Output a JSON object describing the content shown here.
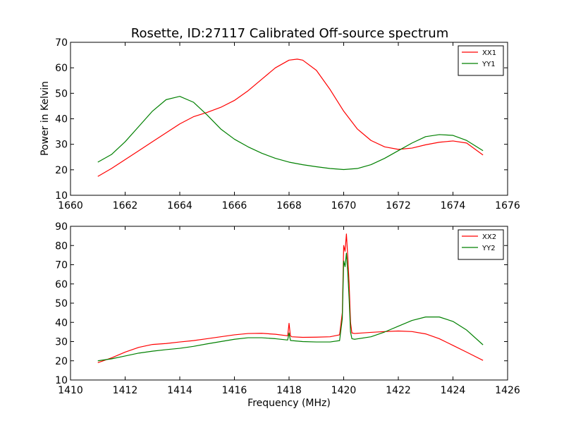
{
  "figure_title": "Rosette, ID:27117 Calibrated Off-source spectrum",
  "colors": {
    "xx": "#ff0000",
    "yy": "#008000",
    "axes": "#000000",
    "background": "#ffffff"
  },
  "chart_data": [
    {
      "type": "line",
      "title": "Rosette, ID:27117 Calibrated Off-source spectrum",
      "xlabel": "",
      "ylabel": "Power in Kelvin",
      "xlim": [
        1660,
        1676
      ],
      "ylim": [
        10,
        70
      ],
      "xticks": [
        1660,
        1662,
        1664,
        1666,
        1668,
        1670,
        1672,
        1674,
        1676
      ],
      "yticks": [
        10,
        20,
        30,
        40,
        50,
        60,
        70
      ],
      "grid": false,
      "legend_position": "top-right",
      "series": [
        {
          "name": "XX1",
          "color": "#ff0000",
          "x": [
            1661.0,
            1661.5,
            1662.0,
            1662.5,
            1663.0,
            1663.5,
            1664.0,
            1664.5,
            1665.0,
            1665.5,
            1666.0,
            1666.5,
            1667.0,
            1667.5,
            1668.0,
            1668.3,
            1668.5,
            1669.0,
            1669.5,
            1670.0,
            1670.5,
            1671.0,
            1671.5,
            1672.0,
            1672.5,
            1673.0,
            1673.5,
            1674.0,
            1674.5,
            1675.1
          ],
          "y": [
            17.4,
            20.5,
            24.0,
            27.5,
            31.0,
            34.5,
            38.0,
            40.8,
            42.5,
            44.5,
            47.2,
            51.0,
            55.5,
            60.0,
            63.0,
            63.4,
            63.0,
            59.0,
            51.5,
            43.0,
            36.0,
            31.5,
            29.0,
            28.0,
            28.5,
            29.8,
            30.8,
            31.3,
            30.5,
            25.8
          ]
        },
        {
          "name": "YY1",
          "color": "#008000",
          "x": [
            1661.0,
            1661.5,
            1662.0,
            1662.5,
            1663.0,
            1663.5,
            1664.0,
            1664.5,
            1665.0,
            1665.5,
            1666.0,
            1666.5,
            1667.0,
            1667.5,
            1668.0,
            1668.5,
            1669.0,
            1669.5,
            1670.0,
            1670.5,
            1671.0,
            1671.5,
            1672.0,
            1672.5,
            1673.0,
            1673.5,
            1674.0,
            1674.5,
            1675.1
          ],
          "y": [
            23.0,
            26.0,
            31.0,
            37.0,
            43.0,
            47.5,
            48.8,
            46.5,
            41.5,
            36.0,
            32.0,
            29.0,
            26.5,
            24.5,
            23.0,
            22.0,
            21.2,
            20.5,
            20.1,
            20.5,
            22.0,
            24.5,
            27.5,
            30.5,
            33.0,
            33.8,
            33.5,
            31.5,
            27.5
          ]
        }
      ]
    },
    {
      "type": "line",
      "title": "",
      "xlabel": "Frequency (MHz)",
      "ylabel": "",
      "xlim": [
        1410,
        1426
      ],
      "ylim": [
        10,
        90
      ],
      "xticks": [
        1410,
        1412,
        1414,
        1416,
        1418,
        1420,
        1422,
        1424,
        1426
      ],
      "yticks": [
        10,
        20,
        30,
        40,
        50,
        60,
        70,
        80,
        90
      ],
      "grid": false,
      "legend_position": "top-right",
      "series": [
        {
          "name": "XX2",
          "color": "#ff0000",
          "x": [
            1411.0,
            1411.5,
            1412.0,
            1412.5,
            1413.0,
            1413.5,
            1414.0,
            1414.5,
            1415.0,
            1415.5,
            1416.0,
            1416.5,
            1417.0,
            1417.5,
            1417.95,
            1418.0,
            1418.05,
            1418.1,
            1418.5,
            1419.0,
            1419.5,
            1419.85,
            1419.95,
            1420.0,
            1420.05,
            1420.1,
            1420.15,
            1420.2,
            1420.25,
            1420.3,
            1420.4,
            1421.0,
            1421.5,
            1422.0,
            1422.5,
            1423.0,
            1423.5,
            1424.0,
            1424.5,
            1425.1
          ],
          "y": [
            19.0,
            21.5,
            24.5,
            27.0,
            28.5,
            29.0,
            29.8,
            30.5,
            31.5,
            32.5,
            33.5,
            34.2,
            34.3,
            33.8,
            33.0,
            39.5,
            33.0,
            32.5,
            32.2,
            32.3,
            32.5,
            33.5,
            45.0,
            80.0,
            77.0,
            86.0,
            74.0,
            60.0,
            40.0,
            34.5,
            34.2,
            34.8,
            35.2,
            35.5,
            35.2,
            34.0,
            31.5,
            28.0,
            24.5,
            20.2
          ]
        },
        {
          "name": "YY2",
          "color": "#008000",
          "x": [
            1411.0,
            1411.5,
            1412.0,
            1412.5,
            1413.0,
            1413.5,
            1414.0,
            1414.5,
            1415.0,
            1415.5,
            1416.0,
            1416.5,
            1417.0,
            1417.5,
            1417.95,
            1418.0,
            1418.05,
            1418.1,
            1418.5,
            1419.0,
            1419.5,
            1419.85,
            1419.95,
            1420.0,
            1420.05,
            1420.1,
            1420.15,
            1420.2,
            1420.25,
            1420.3,
            1420.4,
            1421.0,
            1421.5,
            1422.0,
            1422.5,
            1423.0,
            1423.5,
            1424.0,
            1424.5,
            1425.1
          ],
          "y": [
            20.0,
            21.0,
            22.5,
            24.0,
            25.0,
            25.8,
            26.5,
            27.5,
            28.8,
            30.0,
            31.2,
            32.0,
            32.0,
            31.5,
            30.8,
            34.5,
            30.6,
            30.5,
            30.0,
            29.8,
            29.8,
            30.5,
            42.0,
            72.0,
            69.0,
            76.0,
            66.0,
            52.0,
            35.0,
            31.5,
            31.2,
            32.5,
            35.0,
            38.0,
            41.0,
            42.8,
            42.8,
            40.5,
            36.0,
            28.3
          ]
        }
      ]
    }
  ]
}
